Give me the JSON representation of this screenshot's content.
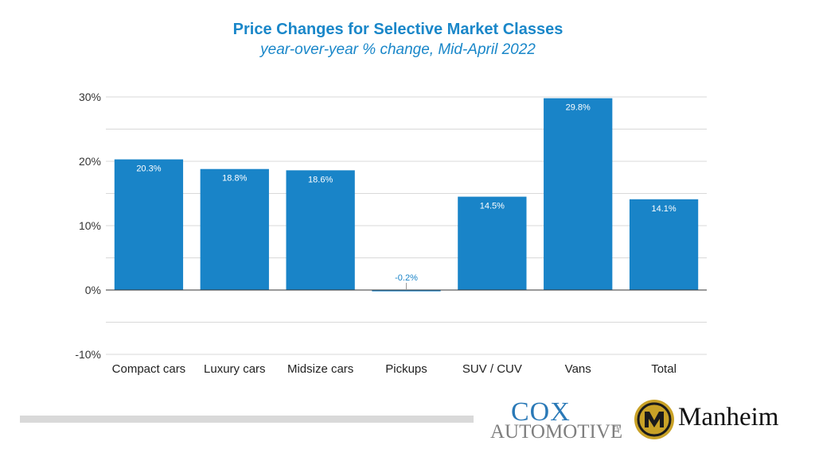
{
  "colors": {
    "bar": "#1984c8",
    "title": "#1a87c9",
    "axis_text": "#333333",
    "grid": "#d9d9d9",
    "zero_line": "#333333",
    "cox_blue": "#2a79b7",
    "cox_gray": "#7f7f7f",
    "manheim_gold": "#c9a227",
    "manheim_dark": "#1b1b1b"
  },
  "logos": {
    "cox_top": "COX",
    "cox_bottom": "AUTOMOTIVE",
    "cox_tm": "TM",
    "manheim": "Manheim"
  },
  "chart_data": {
    "type": "bar",
    "title": "Price Changes for Selective Market Classes",
    "subtitle": "year-over-year % change, Mid-April 2022",
    "categories": [
      "Compact cars",
      "Luxury cars",
      "Midsize cars",
      "Pickups",
      "SUV / CUV",
      "Vans",
      "Total"
    ],
    "values": [
      20.3,
      18.8,
      18.6,
      -0.2,
      14.5,
      29.8,
      14.1
    ],
    "value_labels": [
      "20.3%",
      "18.8%",
      "18.6%",
      "-0.2%",
      "14.5%",
      "29.8%",
      "14.1%"
    ],
    "ylim": [
      -10,
      30
    ],
    "yticks": [
      30,
      20,
      10,
      0,
      -10
    ],
    "ytick_labels": [
      "30%",
      "20%",
      "10%",
      "0%",
      "-10%"
    ],
    "minor_grid": [
      25,
      15,
      5,
      -5
    ],
    "xlabel": "",
    "ylabel": "",
    "grid": true,
    "legend": "none"
  }
}
